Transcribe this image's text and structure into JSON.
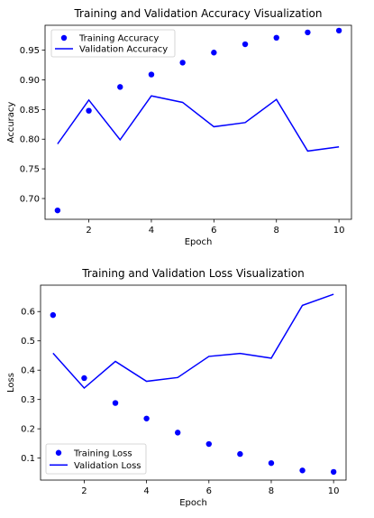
{
  "chart_data": [
    {
      "type": "line",
      "title": "Training and Validation Accuracy Visualization",
      "xlabel": "Epoch",
      "ylabel": "Accuracy",
      "xlim": [
        0.6,
        10.4
      ],
      "ylim": [
        0.665,
        0.992
      ],
      "xticks": [
        2,
        4,
        6,
        8,
        10
      ],
      "yticks": [
        0.7,
        0.75,
        0.8,
        0.85,
        0.9,
        0.95
      ],
      "ytick_labels": [
        "0.70",
        "0.75",
        "0.80",
        "0.85",
        "0.90",
        "0.95"
      ],
      "x": [
        1,
        2,
        3,
        4,
        5,
        6,
        7,
        8,
        9,
        10
      ],
      "series": [
        {
          "name": "Training Accuracy",
          "style": "points",
          "color": "#0000ff",
          "values": [
            0.68,
            0.848,
            0.888,
            0.909,
            0.929,
            0.946,
            0.96,
            0.971,
            0.98,
            0.983
          ]
        },
        {
          "name": "Validation Accuracy",
          "style": "line",
          "color": "#0000ff",
          "values": [
            0.792,
            0.866,
            0.799,
            0.873,
            0.862,
            0.821,
            0.828,
            0.867,
            0.78,
            0.787
          ]
        }
      ],
      "legend_position": "upper-left",
      "grid": false
    },
    {
      "type": "line",
      "title": "Training and Validation Loss Visualization",
      "xlabel": "Epoch",
      "ylabel": "Loss",
      "xlim": [
        0.6,
        10.4
      ],
      "ylim": [
        0.025,
        0.69
      ],
      "xticks": [
        2,
        4,
        6,
        8,
        10
      ],
      "yticks": [
        0.1,
        0.2,
        0.3,
        0.4,
        0.5,
        0.6
      ],
      "ytick_labels": [
        "0.1",
        "0.2",
        "0.3",
        "0.4",
        "0.5",
        "0.6"
      ],
      "x": [
        1,
        2,
        3,
        4,
        5,
        6,
        7,
        8,
        9,
        10
      ],
      "series": [
        {
          "name": "Training Loss",
          "style": "points",
          "color": "#0000ff",
          "values": [
            0.588,
            0.373,
            0.288,
            0.235,
            0.187,
            0.148,
            0.114,
            0.083,
            0.058,
            0.053
          ]
        },
        {
          "name": "Validation Loss",
          "style": "line",
          "color": "#0000ff",
          "values": [
            0.458,
            0.339,
            0.43,
            0.362,
            0.375,
            0.447,
            0.457,
            0.441,
            0.621,
            0.659
          ]
        }
      ],
      "legend_position": "lower-left",
      "grid": false
    }
  ]
}
